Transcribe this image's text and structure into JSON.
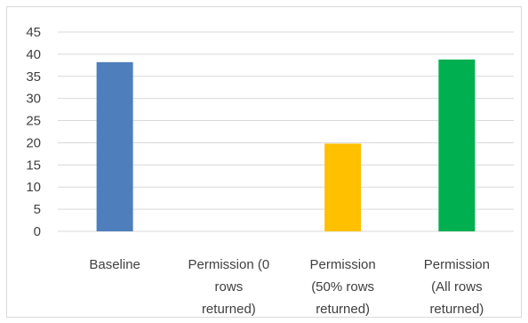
{
  "chart_data": {
    "type": "bar",
    "categories": [
      [
        "Baseline"
      ],
      [
        "Permission (0",
        "rows",
        "returned)"
      ],
      [
        "Permission",
        "(50% rows",
        "returned)"
      ],
      [
        "Permission",
        "(All rows",
        "returned)"
      ]
    ],
    "category_names": [
      "Baseline",
      "Permission (0 rows returned)",
      "Permission (50% rows returned)",
      "Permission (All rows returned)"
    ],
    "values": [
      38.2,
      0,
      19.8,
      38.8
    ],
    "colors": [
      "#4e7fbc",
      "#4e7fbc",
      "#ffc000",
      "#00b050"
    ],
    "ylim": [
      0,
      45
    ],
    "yticks": [
      "0",
      "5",
      "10",
      "15",
      "20",
      "25",
      "30",
      "35",
      "40",
      "45"
    ],
    "grid": true,
    "title": "",
    "xlabel": "",
    "ylabel": ""
  }
}
